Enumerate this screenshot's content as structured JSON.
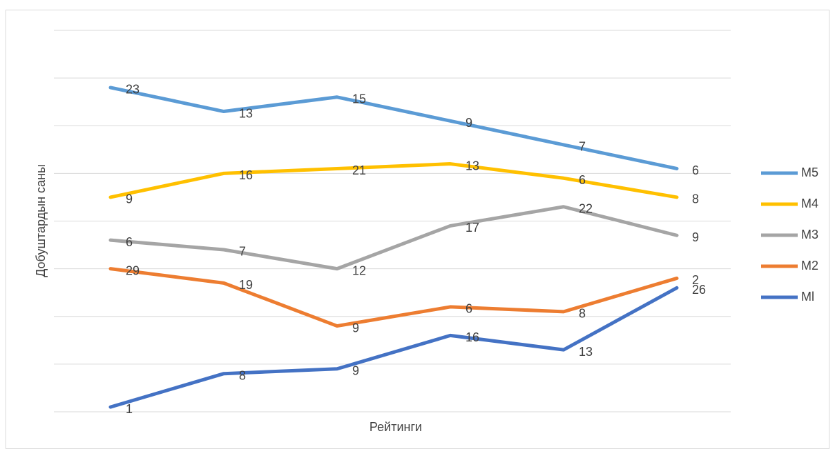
{
  "chart_data": {
    "type": "line",
    "stacked": true,
    "y_label": "Добуштардын саны",
    "x_label": "Рейтинги",
    "categories": [
      null,
      null,
      null,
      null,
      null,
      null
    ],
    "series": [
      {
        "name": "Ml",
        "color": "#4472c4",
        "values": [
          1,
          8,
          9,
          16,
          13,
          26
        ]
      },
      {
        "name": "M2",
        "color": "#ed7d31",
        "values": [
          29,
          19,
          9,
          6,
          8,
          2
        ]
      },
      {
        "name": "M3",
        "color": "#a5a5a5",
        "values": [
          6,
          7,
          12,
          17,
          22,
          9
        ]
      },
      {
        "name": "M4",
        "color": "#ffc000",
        "values": [
          9,
          16,
          21,
          13,
          6,
          8
        ]
      },
      {
        "name": "M5",
        "color": "#5b9bd5",
        "values": [
          23,
          13,
          15,
          9,
          7,
          6
        ]
      }
    ],
    "ylim": [
      0,
      80
    ],
    "yticks": [
      0,
      10,
      20,
      30,
      40,
      50,
      60,
      70,
      80
    ],
    "grid": true,
    "legend": "right"
  }
}
